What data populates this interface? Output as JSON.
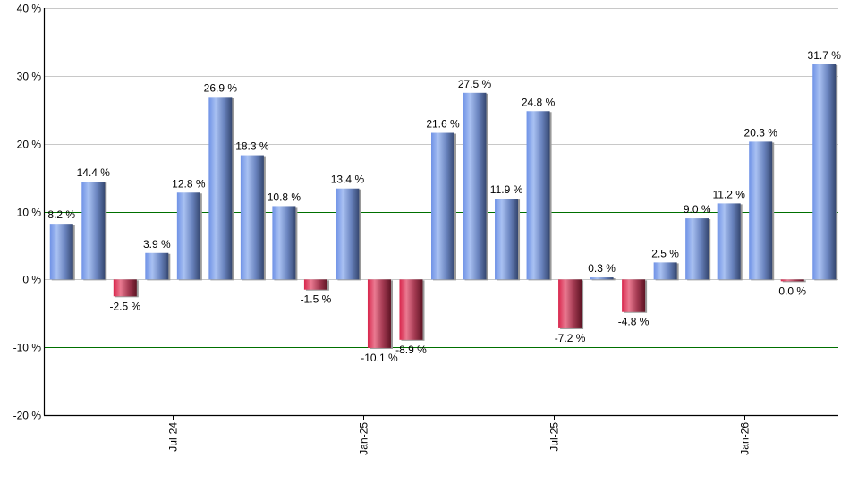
{
  "chart_data": {
    "type": "bar",
    "title": "",
    "xlabel": "",
    "ylabel": "",
    "ylim": [
      -20,
      40
    ],
    "y_ticks": [
      "40 %",
      "30 %",
      "20 %",
      "10 %",
      "0 %",
      "-10 %",
      "-20 %"
    ],
    "y_tick_values": [
      40,
      30,
      20,
      10,
      0,
      -10,
      -20
    ],
    "x_tick_labels": [
      {
        "label": "Jul-24",
        "bar_index": 3.5
      },
      {
        "label": "Jan-25",
        "bar_index": 9.5
      },
      {
        "label": "Jul-25",
        "bar_index": 15.5
      },
      {
        "label": "Jan-26",
        "bar_index": 21.5
      }
    ],
    "grid": true,
    "reference_lines": [
      10,
      -10
    ],
    "legend": null,
    "values": [
      8.2,
      14.4,
      -2.5,
      3.9,
      12.8,
      26.9,
      18.3,
      10.8,
      -1.5,
      13.4,
      -10.1,
      -8.9,
      21.6,
      27.5,
      11.9,
      24.8,
      -7.2,
      0.3,
      -4.8,
      2.5,
      9.0,
      11.2,
      20.3,
      0.0,
      31.7
    ],
    "value_labels": [
      "8.2 %",
      "14.4 %",
      "-2.5 %",
      "3.9 %",
      "12.8 %",
      "26.9 %",
      "18.3 %",
      "10.8 %",
      "-1.5 %",
      "13.4 %",
      "-10.1 %",
      "-8.9 %",
      "21.6 %",
      "27.5 %",
      "11.9 %",
      "24.8 %",
      "-7.2 %",
      "0.3 %",
      "-4.8 %",
      "2.5 %",
      "9.0 %",
      "11.2 %",
      "20.3 %",
      "0.0 %",
      "31.7 %"
    ],
    "colors": {
      "positive": "#7f9fe0",
      "negative": "#c8314f",
      "gridline": "#c8c8c8",
      "reference_line": "#007000",
      "axis": "#000000"
    }
  }
}
